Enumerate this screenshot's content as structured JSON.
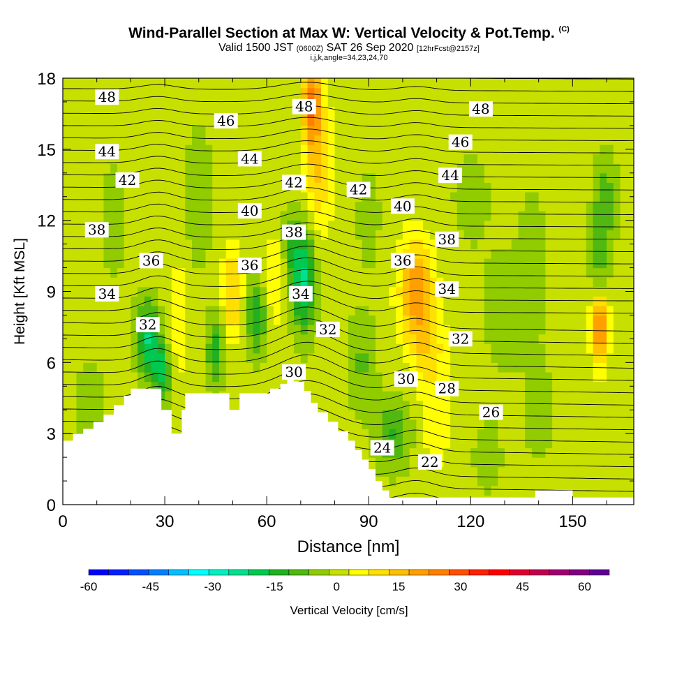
{
  "title": {
    "main": "Wind-Parallel Section at Max W: Vertical Velocity & Pot.Temp.",
    "sup": "(C)",
    "valid": "Valid 1500 JST",
    "z": "(0600Z)",
    "date": "SAT 26 Sep 2020",
    "fcst": "[12hrFcst@2157z]",
    "meta": "i,j,k,angle=34,23,24,70"
  },
  "chart_data": {
    "type": "heatmap",
    "xlabel": "Distance [nm]",
    "ylabel": "Height [Kft MSL]",
    "xlim": [
      0,
      168
    ],
    "ylim": [
      0,
      18
    ],
    "xticks": [
      0,
      30,
      60,
      90,
      120,
      150
    ],
    "yticks": [
      0,
      3,
      6,
      9,
      12,
      15,
      18
    ],
    "colorbar": {
      "label": "Vertical Velocity [cm/s]",
      "min": -60,
      "max": 66,
      "step": 5,
      "ticks": [
        -60,
        -45,
        -30,
        -15,
        0,
        15,
        30,
        45,
        60
      ],
      "colors": [
        "#0000ff",
        "#0020ff",
        "#0050ff",
        "#0080ff",
        "#00c0ff",
        "#00ffff",
        "#00f0c0",
        "#00e090",
        "#00c850",
        "#20b020",
        "#50b810",
        "#90cc00",
        "#c8e000",
        "#ffff00",
        "#ffe000",
        "#ffc000",
        "#ffa000",
        "#ff8000",
        "#ff5000",
        "#ff2000",
        "#ff0000",
        "#e00030",
        "#c00050",
        "#a00070",
        "#800080",
        "#600090"
      ]
    },
    "contours": {
      "variable": "Pot.Temp. (C)",
      "labeled_levels": [
        22,
        24,
        26,
        28,
        30,
        32,
        34,
        36,
        38,
        40,
        42,
        44,
        46,
        48
      ],
      "labels": [
        {
          "text": "48",
          "x": 13,
          "y": 17.2
        },
        {
          "text": "48",
          "x": 71,
          "y": 16.8
        },
        {
          "text": "48",
          "x": 123,
          "y": 16.7
        },
        {
          "text": "46",
          "x": 48,
          "y": 16.2
        },
        {
          "text": "46",
          "x": 117,
          "y": 15.3
        },
        {
          "text": "44",
          "x": 13,
          "y": 14.9
        },
        {
          "text": "44",
          "x": 55,
          "y": 14.6
        },
        {
          "text": "44",
          "x": 114,
          "y": 13.9
        },
        {
          "text": "42",
          "x": 19,
          "y": 13.7
        },
        {
          "text": "42",
          "x": 68,
          "y": 13.6
        },
        {
          "text": "42",
          "x": 87,
          "y": 13.3
        },
        {
          "text": "40",
          "x": 55,
          "y": 12.4
        },
        {
          "text": "40",
          "x": 100,
          "y": 12.6
        },
        {
          "text": "38",
          "x": 10,
          "y": 11.6
        },
        {
          "text": "38",
          "x": 68,
          "y": 11.5
        },
        {
          "text": "38",
          "x": 113,
          "y": 11.2
        },
        {
          "text": "36",
          "x": 26,
          "y": 10.3
        },
        {
          "text": "36",
          "x": 55,
          "y": 10.1
        },
        {
          "text": "36",
          "x": 100,
          "y": 10.3
        },
        {
          "text": "34",
          "x": 13,
          "y": 8.9
        },
        {
          "text": "34",
          "x": 70,
          "y": 8.9
        },
        {
          "text": "34",
          "x": 113,
          "y": 9.1
        },
        {
          "text": "32",
          "x": 25,
          "y": 7.6
        },
        {
          "text": "32",
          "x": 78,
          "y": 7.4
        },
        {
          "text": "32",
          "x": 117,
          "y": 7.0
        },
        {
          "text": "30",
          "x": 68,
          "y": 5.6
        },
        {
          "text": "30",
          "x": 101,
          "y": 5.3
        },
        {
          "text": "28",
          "x": 113,
          "y": 4.9
        },
        {
          "text": "26",
          "x": 126,
          "y": 3.9
        },
        {
          "text": "24",
          "x": 94,
          "y": 2.4
        },
        {
          "text": "22",
          "x": 108,
          "y": 1.8
        }
      ]
    },
    "terrain_top": [
      [
        0,
        2.7
      ],
      [
        3,
        2.7
      ],
      [
        3,
        3.0
      ],
      [
        6,
        3.0
      ],
      [
        6,
        3.2
      ],
      [
        9,
        3.2
      ],
      [
        9,
        3.5
      ],
      [
        12,
        3.5
      ],
      [
        12,
        3.8
      ],
      [
        15,
        3.8
      ],
      [
        15,
        4.2
      ],
      [
        18,
        4.2
      ],
      [
        18,
        4.6
      ],
      [
        20,
        4.6
      ],
      [
        20,
        4.9
      ],
      [
        29,
        4.9
      ],
      [
        29,
        4.0
      ],
      [
        32,
        4.0
      ],
      [
        32,
        3.0
      ],
      [
        35,
        3.0
      ],
      [
        35,
        4.0
      ],
      [
        36,
        4.0
      ],
      [
        36,
        4.7
      ],
      [
        49,
        4.7
      ],
      [
        49,
        4.0
      ],
      [
        52,
        4.0
      ],
      [
        52,
        4.7
      ],
      [
        61,
        4.7
      ],
      [
        61,
        4.9
      ],
      [
        64,
        4.9
      ],
      [
        64,
        5.1
      ],
      [
        66,
        5.1
      ],
      [
        66,
        5.5
      ],
      [
        68,
        5.5
      ],
      [
        68,
        5.2
      ],
      [
        71,
        5.2
      ],
      [
        71,
        4.8
      ],
      [
        73,
        4.8
      ],
      [
        73,
        4.3
      ],
      [
        75,
        4.3
      ],
      [
        75,
        3.9
      ],
      [
        78,
        3.9
      ],
      [
        78,
        3.5
      ],
      [
        81,
        3.5
      ],
      [
        81,
        3.1
      ],
      [
        84,
        3.1
      ],
      [
        84,
        2.7
      ],
      [
        86,
        2.7
      ],
      [
        86,
        2.3
      ],
      [
        88,
        2.3
      ],
      [
        88,
        1.9
      ],
      [
        90,
        1.9
      ],
      [
        90,
        1.5
      ],
      [
        92,
        1.5
      ],
      [
        92,
        1.0
      ],
      [
        94,
        1.0
      ],
      [
        94,
        0.6
      ],
      [
        96,
        0.6
      ],
      [
        96,
        0.3
      ],
      [
        139,
        0.3
      ],
      [
        139,
        0.6
      ],
      [
        150,
        0.6
      ],
      [
        150,
        0.3
      ],
      [
        168,
        0.3
      ]
    ]
  }
}
